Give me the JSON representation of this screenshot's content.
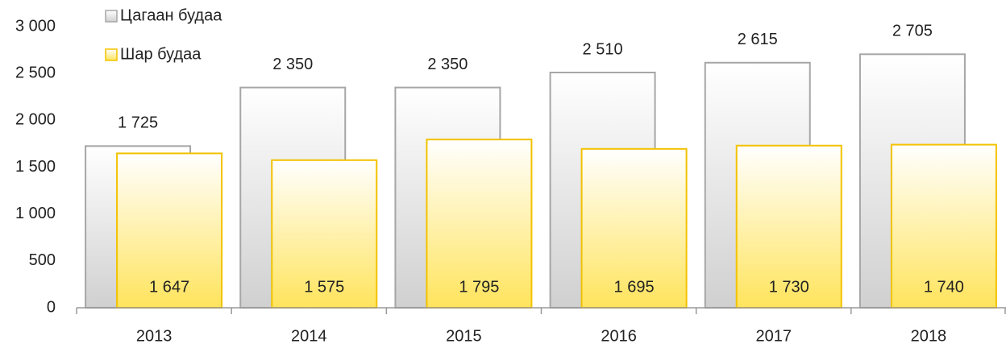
{
  "chart_data": {
    "type": "bar",
    "categories": [
      "2013",
      "2014",
      "2015",
      "2016",
      "2017",
      "2018"
    ],
    "series": [
      {
        "name": "Цагаан будаа",
        "color": "#d0d0d0",
        "values": [
          1725,
          2350,
          2350,
          2510,
          2615,
          2705
        ],
        "value_labels": [
          "1 725",
          "2 350",
          "2 350",
          "2 510",
          "2 615",
          "2 705"
        ]
      },
      {
        "name": "Шар будаа",
        "color": "#ffe45c",
        "values": [
          1647,
          1575,
          1795,
          1695,
          1730,
          1740
        ],
        "value_labels": [
          "1 647",
          "1 575",
          "1 795",
          "1 695",
          "1 730",
          "1 740"
        ]
      }
    ],
    "ylim": [
      0,
      3000
    ],
    "yticks": [
      0,
      500,
      {
        "value": 1000,
        "label": "1 000"
      },
      {
        "value": 1500,
        "label": "1 500"
      },
      {
        "value": 2000,
        "label": "2 000"
      },
      {
        "value": 2500,
        "label": "2 500"
      },
      {
        "value": 3000,
        "label": "3 000"
      }
    ],
    "grid": false
  }
}
